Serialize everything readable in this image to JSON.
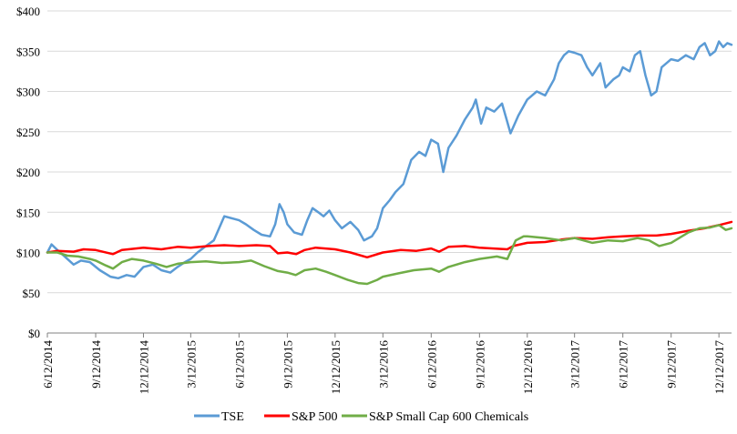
{
  "chart_data": {
    "type": "line",
    "title": "",
    "xlabel": "",
    "ylabel": "",
    "ylim": [
      0,
      400
    ],
    "y_ticks": [
      "$0",
      "$50",
      "$100",
      "$150",
      "$200",
      "$250",
      "$300",
      "$350",
      "$400"
    ],
    "y_tick_values": [
      0,
      50,
      100,
      150,
      200,
      250,
      300,
      350,
      400
    ],
    "x_ticks": [
      "6/12/2014",
      "9/12/2014",
      "12/12/2014",
      "3/12/2015",
      "6/12/2015",
      "9/12/2015",
      "12/12/2015",
      "3/12/2016",
      "6/12/2016",
      "9/12/2016",
      "12/12/2016",
      "3/12/2017",
      "6/12/2017",
      "9/12/2017",
      "12/12/2017"
    ],
    "x_range": [
      "2014-06-12",
      "2018-01-05"
    ],
    "grid": "horizontal",
    "legend_position": "bottom",
    "series": [
      {
        "name": "TSE",
        "color": "#5B9BD5",
        "points": [
          [
            "2014-06-12",
            100
          ],
          [
            "2014-06-20",
            110
          ],
          [
            "2014-07-01",
            103
          ],
          [
            "2014-07-15",
            95
          ],
          [
            "2014-08-01",
            85
          ],
          [
            "2014-08-15",
            90
          ],
          [
            "2014-09-01",
            88
          ],
          [
            "2014-09-20",
            78
          ],
          [
            "2014-10-10",
            70
          ],
          [
            "2014-10-25",
            68
          ],
          [
            "2014-11-10",
            72
          ],
          [
            "2014-11-25",
            70
          ],
          [
            "2014-12-12",
            82
          ],
          [
            "2014-12-30",
            85
          ],
          [
            "2015-01-15",
            78
          ],
          [
            "2015-02-01",
            75
          ],
          [
            "2015-02-15",
            82
          ],
          [
            "2015-03-01",
            88
          ],
          [
            "2015-03-12",
            92
          ],
          [
            "2015-03-25",
            100
          ],
          [
            "2015-04-10",
            108
          ],
          [
            "2015-04-25",
            115
          ],
          [
            "2015-05-05",
            130
          ],
          [
            "2015-05-15",
            145
          ],
          [
            "2015-06-01",
            142
          ],
          [
            "2015-06-12",
            140
          ],
          [
            "2015-06-25",
            135
          ],
          [
            "2015-07-10",
            128
          ],
          [
            "2015-07-25",
            122
          ],
          [
            "2015-08-10",
            120
          ],
          [
            "2015-08-20",
            135
          ],
          [
            "2015-08-28",
            160
          ],
          [
            "2015-09-05",
            150
          ],
          [
            "2015-09-12",
            135
          ],
          [
            "2015-09-25",
            125
          ],
          [
            "2015-10-10",
            122
          ],
          [
            "2015-10-20",
            140
          ],
          [
            "2015-10-30",
            155
          ],
          [
            "2015-11-10",
            150
          ],
          [
            "2015-11-20",
            145
          ],
          [
            "2015-12-01",
            152
          ],
          [
            "2015-12-12",
            140
          ],
          [
            "2015-12-25",
            130
          ],
          [
            "2016-01-10",
            138
          ],
          [
            "2016-01-25",
            128
          ],
          [
            "2016-02-05",
            115
          ],
          [
            "2016-02-20",
            120
          ],
          [
            "2016-03-01",
            130
          ],
          [
            "2016-03-12",
            155
          ],
          [
            "2016-03-25",
            165
          ],
          [
            "2016-04-05",
            175
          ],
          [
            "2016-04-20",
            185
          ],
          [
            "2016-05-05",
            215
          ],
          [
            "2016-05-20",
            225
          ],
          [
            "2016-06-01",
            220
          ],
          [
            "2016-06-12",
            240
          ],
          [
            "2016-06-25",
            235
          ],
          [
            "2016-07-05",
            200
          ],
          [
            "2016-07-15",
            230
          ],
          [
            "2016-07-30",
            245
          ],
          [
            "2016-08-15",
            265
          ],
          [
            "2016-08-30",
            280
          ],
          [
            "2016-09-05",
            290
          ],
          [
            "2016-09-15",
            260
          ],
          [
            "2016-09-25",
            280
          ],
          [
            "2016-10-10",
            275
          ],
          [
            "2016-10-25",
            285
          ],
          [
            "2016-11-10",
            248
          ],
          [
            "2016-11-25",
            270
          ],
          [
            "2016-12-12",
            290
          ],
          [
            "2016-12-30",
            300
          ],
          [
            "2017-01-15",
            295
          ],
          [
            "2017-02-01",
            315
          ],
          [
            "2017-02-10",
            335
          ],
          [
            "2017-02-20",
            345
          ],
          [
            "2017-03-01",
            350
          ],
          [
            "2017-03-12",
            348
          ],
          [
            "2017-03-25",
            345
          ],
          [
            "2017-04-05",
            330
          ],
          [
            "2017-04-15",
            320
          ],
          [
            "2017-04-30",
            335
          ],
          [
            "2017-05-10",
            305
          ],
          [
            "2017-05-25",
            315
          ],
          [
            "2017-06-05",
            320
          ],
          [
            "2017-06-12",
            330
          ],
          [
            "2017-06-25",
            325
          ],
          [
            "2017-07-05",
            345
          ],
          [
            "2017-07-15",
            350
          ],
          [
            "2017-07-25",
            320
          ],
          [
            "2017-08-05",
            295
          ],
          [
            "2017-08-15",
            300
          ],
          [
            "2017-08-25",
            330
          ],
          [
            "2017-09-12",
            340
          ],
          [
            "2017-09-25",
            338
          ],
          [
            "2017-10-10",
            345
          ],
          [
            "2017-10-25",
            340
          ],
          [
            "2017-11-05",
            355
          ],
          [
            "2017-11-15",
            360
          ],
          [
            "2017-11-25",
            345
          ],
          [
            "2017-12-05",
            350
          ],
          [
            "2017-12-12",
            362
          ],
          [
            "2017-12-20",
            355
          ],
          [
            "2017-12-28",
            360
          ],
          [
            "2018-01-05",
            358
          ]
        ]
      },
      {
        "name": "S&P 500",
        "color": "#FF0000",
        "points": [
          [
            "2014-06-12",
            100
          ],
          [
            "2014-07-01",
            102
          ],
          [
            "2014-08-01",
            101
          ],
          [
            "2014-08-20",
            104
          ],
          [
            "2014-09-12",
            103
          ],
          [
            "2014-10-15",
            98
          ],
          [
            "2014-11-01",
            103
          ],
          [
            "2014-12-12",
            106
          ],
          [
            "2015-01-15",
            104
          ],
          [
            "2015-02-15",
            107
          ],
          [
            "2015-03-12",
            106
          ],
          [
            "2015-04-15",
            108
          ],
          [
            "2015-05-15",
            109
          ],
          [
            "2015-06-12",
            108
          ],
          [
            "2015-07-15",
            109
          ],
          [
            "2015-08-10",
            108
          ],
          [
            "2015-08-25",
            99
          ],
          [
            "2015-09-12",
            100
          ],
          [
            "2015-09-29",
            98
          ],
          [
            "2015-10-15",
            103
          ],
          [
            "2015-11-05",
            106
          ],
          [
            "2015-12-12",
            104
          ],
          [
            "2016-01-10",
            100
          ],
          [
            "2016-02-11",
            94
          ],
          [
            "2016-03-12",
            100
          ],
          [
            "2016-04-15",
            103
          ],
          [
            "2016-05-15",
            102
          ],
          [
            "2016-06-12",
            105
          ],
          [
            "2016-06-27",
            101
          ],
          [
            "2016-07-15",
            107
          ],
          [
            "2016-08-15",
            108
          ],
          [
            "2016-09-12",
            106
          ],
          [
            "2016-11-04",
            104
          ],
          [
            "2016-11-15",
            108
          ],
          [
            "2016-12-12",
            112
          ],
          [
            "2017-01-15",
            113
          ],
          [
            "2017-02-15",
            116
          ],
          [
            "2017-03-12",
            118
          ],
          [
            "2017-04-15",
            117
          ],
          [
            "2017-05-15",
            119
          ],
          [
            "2017-06-12",
            120
          ],
          [
            "2017-07-15",
            121
          ],
          [
            "2017-08-15",
            121
          ],
          [
            "2017-09-12",
            123
          ],
          [
            "2017-10-15",
            127
          ],
          [
            "2017-11-15",
            130
          ],
          [
            "2017-12-12",
            134
          ],
          [
            "2018-01-05",
            138
          ]
        ]
      },
      {
        "name": "S&P Small Cap 600 Chemicals",
        "color": "#70AD47",
        "points": [
          [
            "2014-06-12",
            100
          ],
          [
            "2014-07-01",
            100
          ],
          [
            "2014-07-20",
            96
          ],
          [
            "2014-08-10",
            95
          ],
          [
            "2014-09-01",
            92
          ],
          [
            "2014-09-12",
            90
          ],
          [
            "2014-10-01",
            84
          ],
          [
            "2014-10-15",
            80
          ],
          [
            "2014-11-01",
            88
          ],
          [
            "2014-11-20",
            92
          ],
          [
            "2014-12-12",
            90
          ],
          [
            "2015-01-05",
            86
          ],
          [
            "2015-01-25",
            82
          ],
          [
            "2015-02-15",
            86
          ],
          [
            "2015-03-12",
            88
          ],
          [
            "2015-04-10",
            89
          ],
          [
            "2015-05-10",
            87
          ],
          [
            "2015-06-12",
            88
          ],
          [
            "2015-07-05",
            90
          ],
          [
            "2015-07-30",
            83
          ],
          [
            "2015-08-25",
            77
          ],
          [
            "2015-09-12",
            75
          ],
          [
            "2015-09-28",
            72
          ],
          [
            "2015-10-15",
            78
          ],
          [
            "2015-11-05",
            80
          ],
          [
            "2015-11-25",
            76
          ],
          [
            "2015-12-12",
            72
          ],
          [
            "2016-01-05",
            66
          ],
          [
            "2016-01-25",
            62
          ],
          [
            "2016-02-11",
            61
          ],
          [
            "2016-03-01",
            66
          ],
          [
            "2016-03-12",
            70
          ],
          [
            "2016-04-10",
            74
          ],
          [
            "2016-05-10",
            78
          ],
          [
            "2016-06-12",
            80
          ],
          [
            "2016-06-27",
            76
          ],
          [
            "2016-07-15",
            82
          ],
          [
            "2016-08-15",
            88
          ],
          [
            "2016-09-12",
            92
          ],
          [
            "2016-10-15",
            95
          ],
          [
            "2016-11-04",
            92
          ],
          [
            "2016-11-20",
            115
          ],
          [
            "2016-12-05",
            120
          ],
          [
            "2016-12-12",
            120
          ],
          [
            "2017-01-15",
            118
          ],
          [
            "2017-02-15",
            115
          ],
          [
            "2017-03-12",
            118
          ],
          [
            "2017-04-15",
            112
          ],
          [
            "2017-05-15",
            115
          ],
          [
            "2017-06-12",
            114
          ],
          [
            "2017-07-10",
            118
          ],
          [
            "2017-08-01",
            115
          ],
          [
            "2017-08-20",
            108
          ],
          [
            "2017-09-12",
            112
          ],
          [
            "2017-10-15",
            125
          ],
          [
            "2017-11-05",
            130
          ],
          [
            "2017-11-25",
            131
          ],
          [
            "2017-12-12",
            134
          ],
          [
            "2017-12-25",
            128
          ],
          [
            "2018-01-05",
            130
          ]
        ]
      }
    ]
  }
}
